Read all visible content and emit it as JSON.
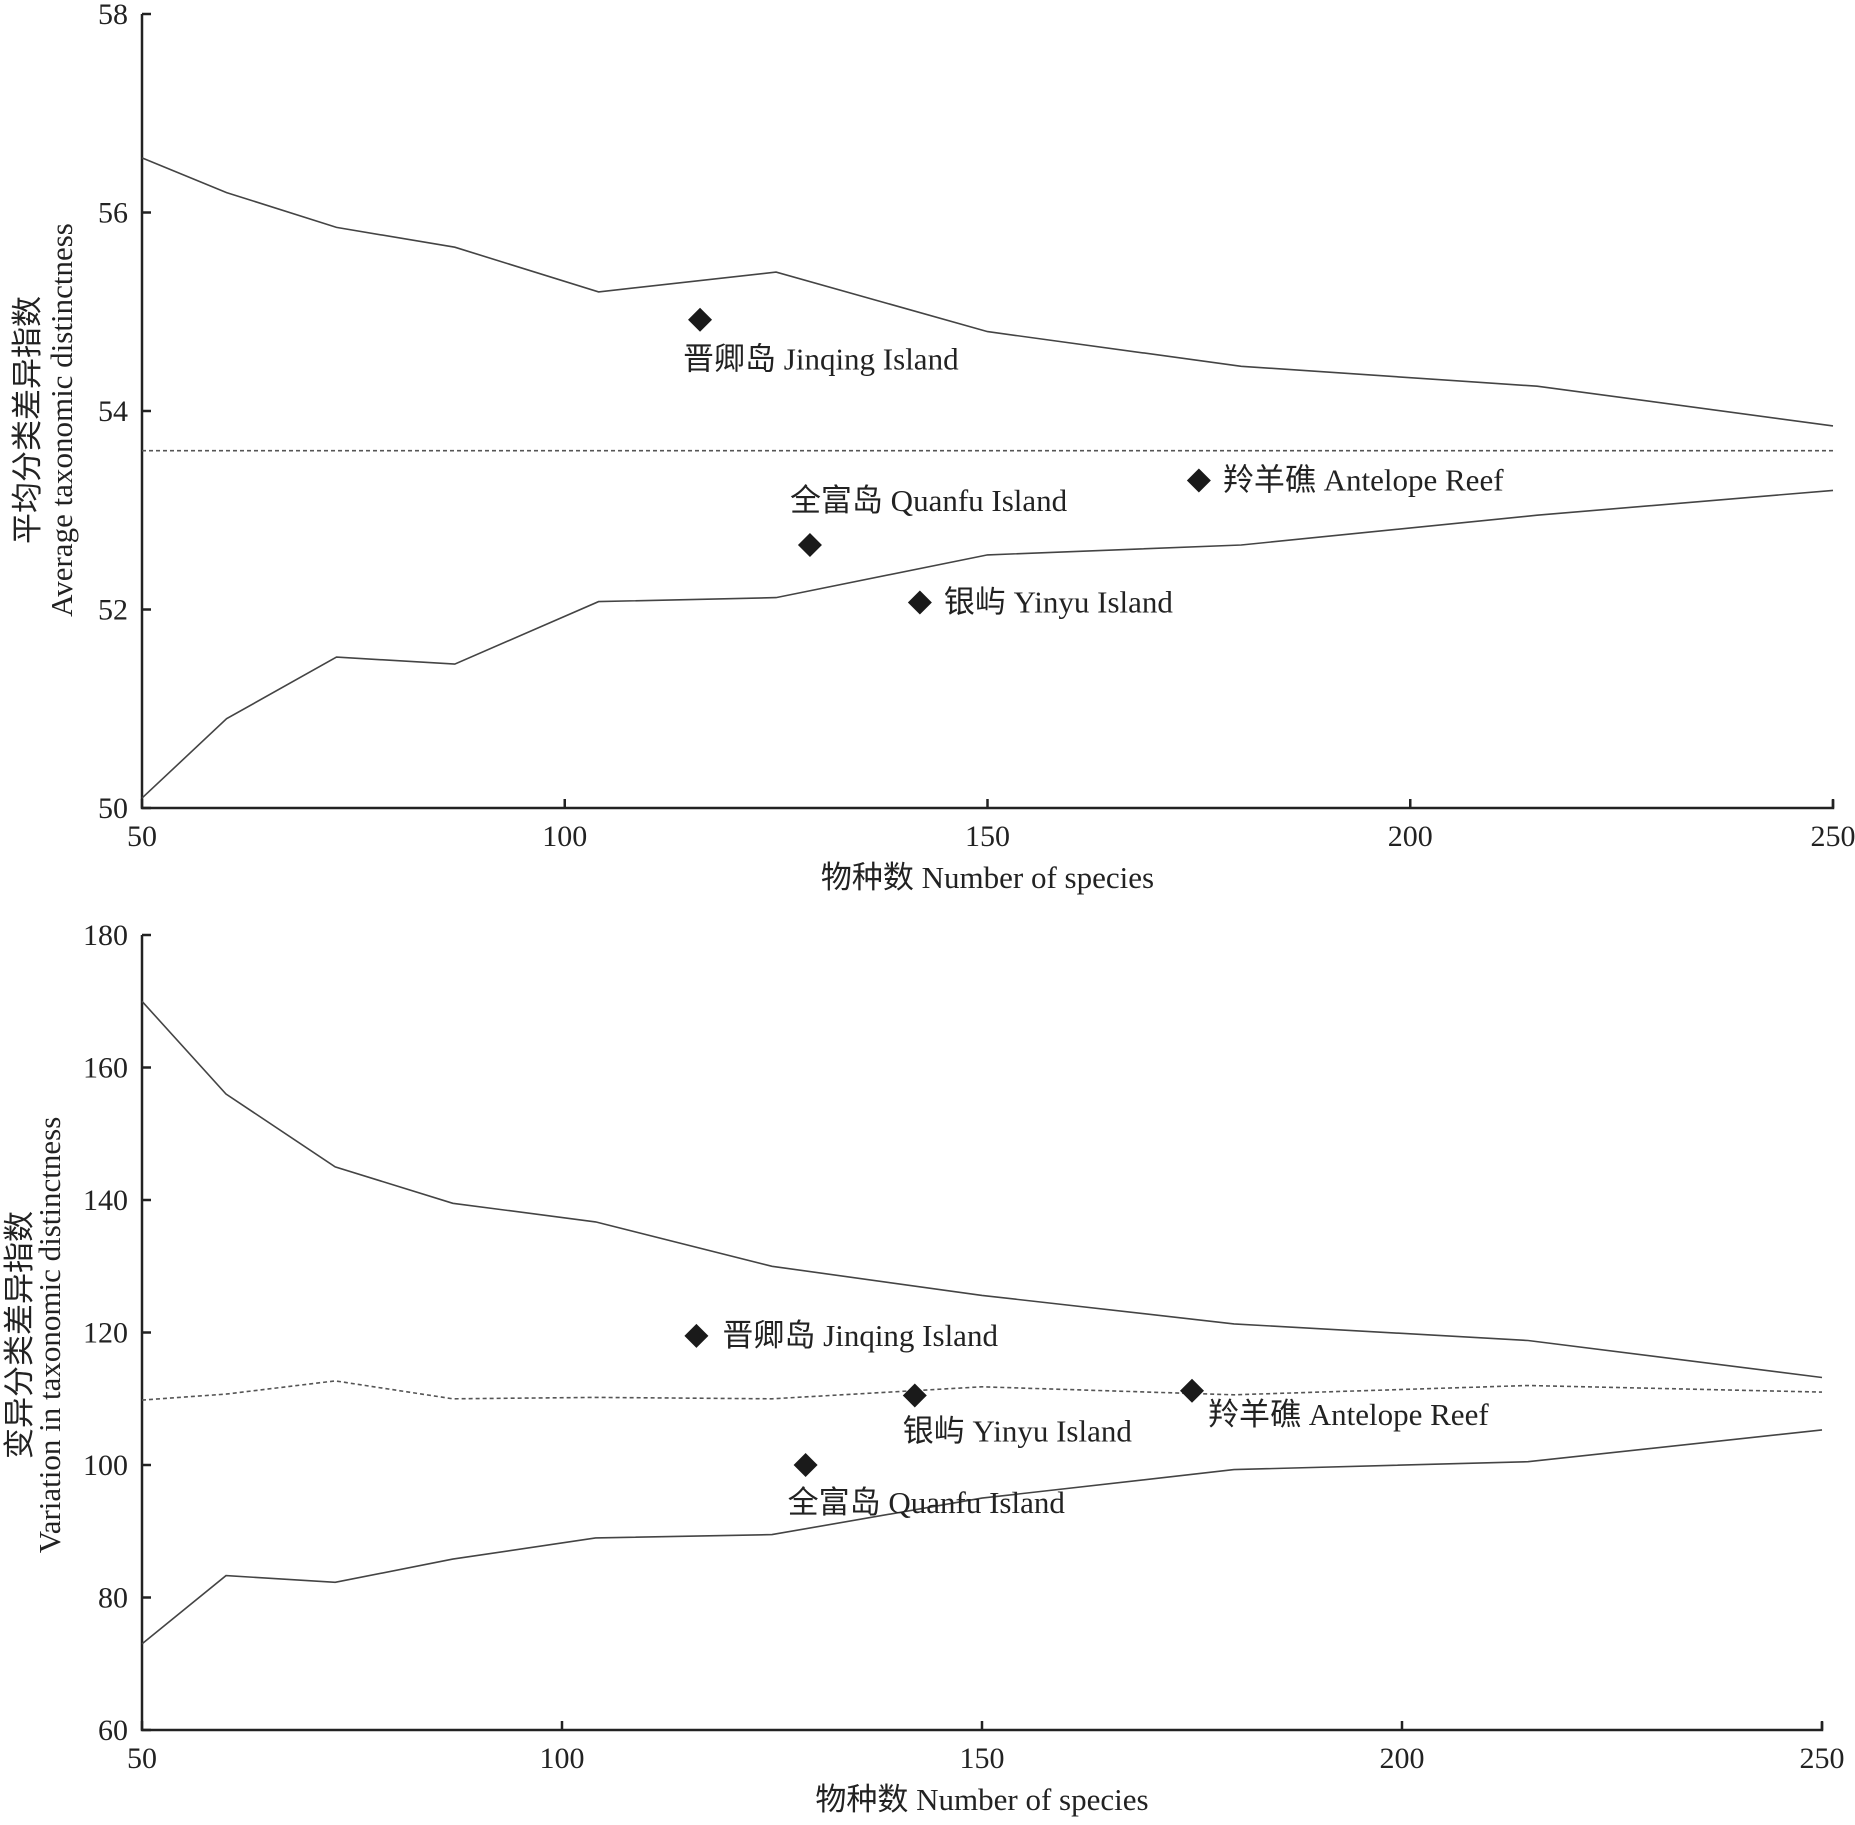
{
  "chart_data": [
    {
      "type": "line",
      "title": "",
      "xlabel": "物种数 Number of species",
      "ylabel_cn": "平均分类差异指数",
      "ylabel_en": "Average taxonomic distinctness",
      "xlim": [
        50,
        250
      ],
      "ylim": [
        50,
        58
      ],
      "xticks": [
        50,
        100,
        150,
        200,
        250
      ],
      "yticks": [
        50,
        52,
        54,
        56,
        58
      ],
      "grid": false,
      "series": [
        {
          "name": "upper limit",
          "style": "solid",
          "x": [
            50,
            60,
            73,
            87,
            104,
            125,
            150,
            180,
            215,
            250
          ],
          "y": [
            56.55,
            56.2,
            55.85,
            55.65,
            55.2,
            55.4,
            54.8,
            54.45,
            54.25,
            53.85
          ]
        },
        {
          "name": "lower limit",
          "style": "solid",
          "x": [
            50,
            60,
            73,
            87,
            104,
            125,
            150,
            180,
            215,
            250
          ],
          "y": [
            50.1,
            50.9,
            51.52,
            51.45,
            52.08,
            52.12,
            52.55,
            52.65,
            52.95,
            53.2
          ]
        },
        {
          "name": "mean",
          "style": "dotted",
          "x": [
            50,
            250
          ],
          "y": [
            53.6,
            53.6
          ]
        }
      ],
      "points": [
        {
          "label": "晋卿岛 Jinqing Island",
          "x": 116,
          "y": 54.92
        },
        {
          "label": "全富岛 Quanfu Island",
          "x": 129,
          "y": 52.65
        },
        {
          "label": "银屿 Yinyu Island",
          "x": 142,
          "y": 52.07
        },
        {
          "label": "羚羊礁 Antelope Reef",
          "x": 175,
          "y": 53.3
        }
      ]
    },
    {
      "type": "line",
      "title": "",
      "xlabel": "物种数 Number of species",
      "ylabel_cn": "变异分类差异指数",
      "ylabel_en": "Variation in taxonomic distinctness",
      "xlim": [
        50,
        250
      ],
      "ylim": [
        60,
        180
      ],
      "xticks": [
        50,
        100,
        150,
        200,
        250
      ],
      "yticks": [
        60,
        80,
        100,
        120,
        140,
        160,
        180
      ],
      "grid": false,
      "series": [
        {
          "name": "upper limit",
          "style": "solid",
          "x": [
            50,
            60,
            73,
            87,
            104,
            125,
            150,
            180,
            215,
            250
          ],
          "y": [
            170,
            156,
            145,
            139.5,
            136.7,
            130,
            125.6,
            121.3,
            118.8,
            113.2
          ]
        },
        {
          "name": "lower limit",
          "style": "solid",
          "x": [
            50,
            60,
            73,
            87,
            104,
            125,
            150,
            180,
            215,
            250
          ],
          "y": [
            73,
            83.3,
            82.3,
            85.8,
            89,
            89.5,
            95,
            99.3,
            100.5,
            105.3
          ]
        },
        {
          "name": "mean",
          "style": "dotted",
          "x": [
            50,
            60,
            73,
            87,
            104,
            125,
            150,
            180,
            215,
            250
          ],
          "y": [
            109.8,
            110.7,
            112.7,
            110,
            110.2,
            110,
            111.8,
            110.6,
            112,
            111
          ]
        }
      ],
      "points": [
        {
          "label": "晋卿岛 Jinqing Island",
          "x": 116,
          "y": 119.5
        },
        {
          "label": "银屿 Yinyu Island",
          "x": 142,
          "y": 110.5
        },
        {
          "label": "羚羊礁 Antelope Reef",
          "x": 175,
          "y": 111.2
        },
        {
          "label": "全富岛 Quanfu Island",
          "x": 129,
          "y": 100
        }
      ]
    }
  ]
}
